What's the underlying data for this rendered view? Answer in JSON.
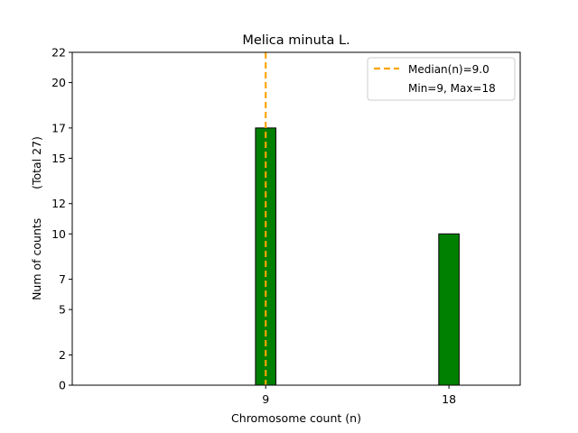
{
  "chart_data": {
    "type": "bar",
    "title": "Melica minuta L.",
    "xlabel": "Chromosome count (n)",
    "ylabel": "Num of counts        (Total 27)",
    "x_ticks": [
      "9",
      "18"
    ],
    "y_ticks": [
      "0",
      "2",
      "5",
      "7",
      "10",
      "12",
      "15",
      "17",
      "20",
      "22"
    ],
    "x": [
      9,
      18
    ],
    "values": [
      17,
      10
    ],
    "xlim": [
      -0.5,
      21.5
    ],
    "ylim": [
      0,
      22
    ],
    "bar_width": 1,
    "bar_color": "#008000",
    "median": 9.0,
    "median_color": "#FFA500",
    "legend": {
      "placement": "top-right",
      "entries": [
        "Median(n)=9.0",
        "Min=9, Max=18"
      ]
    },
    "grid": false
  }
}
